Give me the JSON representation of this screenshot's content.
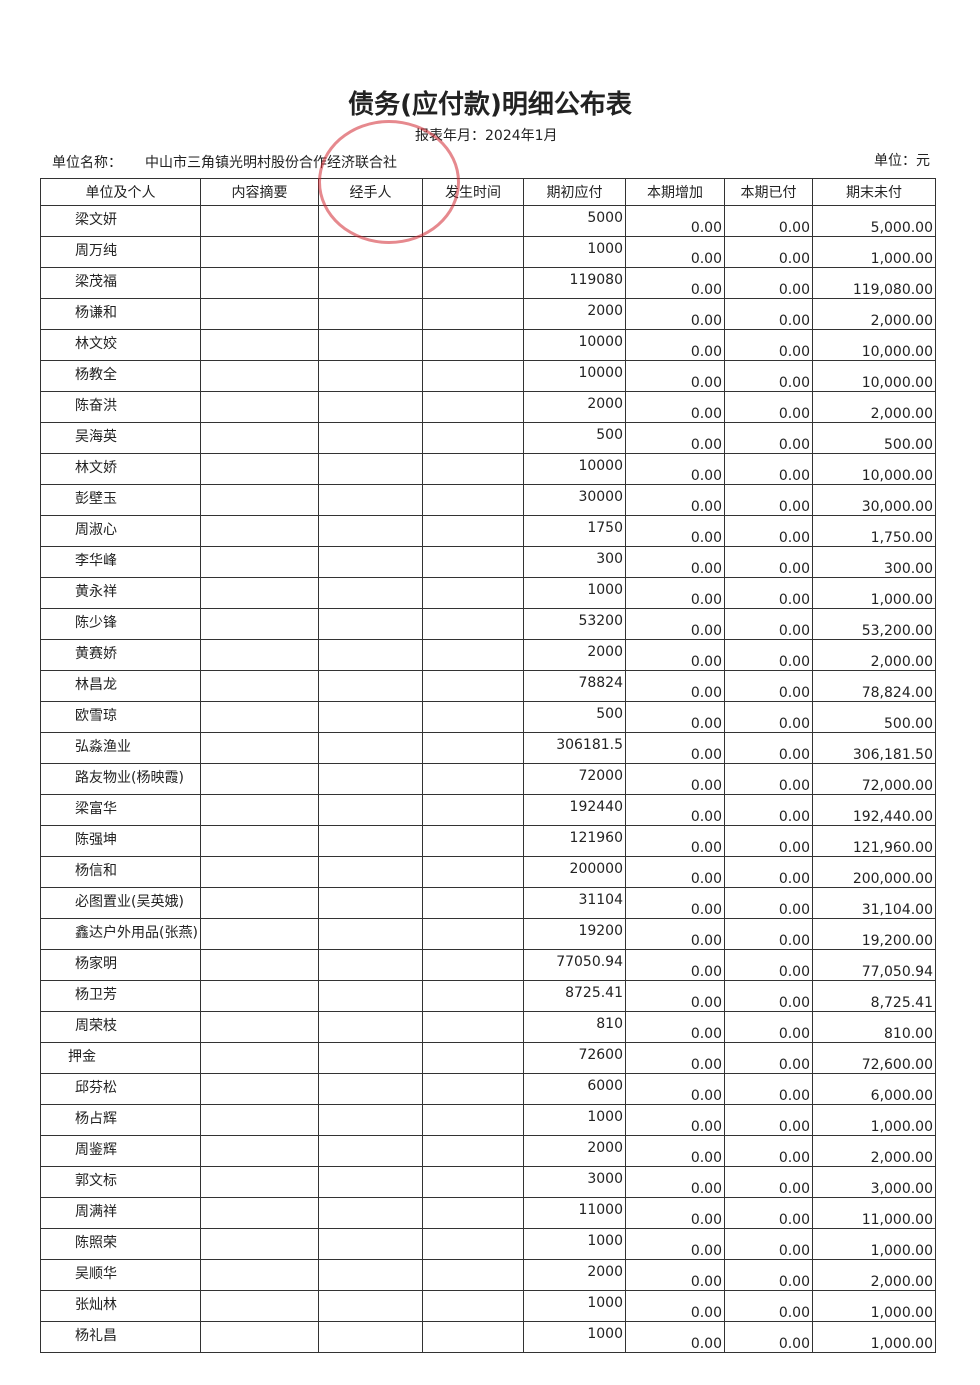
{
  "header": {
    "title": "债务(应付款)明细公布表",
    "report_date": "报表年月：2024年1月",
    "unit_label": "单位名称：",
    "unit_name": "中山市三角镇光明村股份合作经济联合社",
    "currency": "单位：元"
  },
  "table": {
    "columns": [
      "单位及个人",
      "内容摘要",
      "经手人",
      "发生时间",
      "期初应付",
      "本期增加",
      "本期已付",
      "期末未付"
    ],
    "rows": [
      [
        "梁文妍",
        "5000",
        "0.00",
        "0.00",
        "5,000.00"
      ],
      [
        "周万纯",
        "1000",
        "0.00",
        "0.00",
        "1,000.00"
      ],
      [
        "梁茂福",
        "119080",
        "0.00",
        "0.00",
        "119,080.00"
      ],
      [
        "杨谦和",
        "2000",
        "0.00",
        "0.00",
        "2,000.00"
      ],
      [
        "林文姣",
        "10000",
        "0.00",
        "0.00",
        "10,000.00"
      ],
      [
        "杨教全",
        "10000",
        "0.00",
        "0.00",
        "10,000.00"
      ],
      [
        "陈奋洪",
        "2000",
        "0.00",
        "0.00",
        "2,000.00"
      ],
      [
        "吴海英",
        "500",
        "0.00",
        "0.00",
        "500.00"
      ],
      [
        "林文娇",
        "10000",
        "0.00",
        "0.00",
        "10,000.00"
      ],
      [
        "彭壁玉",
        "30000",
        "0.00",
        "0.00",
        "30,000.00"
      ],
      [
        "周淑心",
        "1750",
        "0.00",
        "0.00",
        "1,750.00"
      ],
      [
        "李华峰",
        "300",
        "0.00",
        "0.00",
        "300.00"
      ],
      [
        "黄永祥",
        "1000",
        "0.00",
        "0.00",
        "1,000.00"
      ],
      [
        "陈少锋",
        "53200",
        "0.00",
        "0.00",
        "53,200.00"
      ],
      [
        "黄赛娇",
        "2000",
        "0.00",
        "0.00",
        "2,000.00"
      ],
      [
        "林昌龙",
        "78824",
        "0.00",
        "0.00",
        "78,824.00"
      ],
      [
        "欧雪琼",
        "500",
        "0.00",
        "0.00",
        "500.00"
      ],
      [
        "弘淼渔业",
        "306181.5",
        "0.00",
        "0.00",
        "306,181.50"
      ],
      [
        "路友物业(杨映霞)",
        "72000",
        "0.00",
        "0.00",
        "72,000.00"
      ],
      [
        "梁富华",
        "192440",
        "0.00",
        "0.00",
        "192,440.00"
      ],
      [
        "陈强坤",
        "121960",
        "0.00",
        "0.00",
        "121,960.00"
      ],
      [
        "杨信和",
        "200000",
        "0.00",
        "0.00",
        "200,000.00"
      ],
      [
        "必图置业(吴英娥)",
        "31104",
        "0.00",
        "0.00",
        "31,104.00"
      ],
      [
        "鑫达户外用品(张燕)",
        "19200",
        "0.00",
        "0.00",
        "19,200.00"
      ],
      [
        "杨家明",
        "77050.94",
        "0.00",
        "0.00",
        "77,050.94"
      ],
      [
        "杨卫芳",
        "8725.41",
        "0.00",
        "0.00",
        "8,725.41"
      ],
      [
        "周荣枝",
        "810",
        "0.00",
        "0.00",
        "810.00"
      ],
      [
        "押金",
        "72600",
        "0.00",
        "0.00",
        "72,600.00"
      ],
      [
        "邱芬松",
        "6000",
        "0.00",
        "0.00",
        "6,000.00"
      ],
      [
        "杨占辉",
        "1000",
        "0.00",
        "0.00",
        "1,000.00"
      ],
      [
        "周鉴辉",
        "2000",
        "0.00",
        "0.00",
        "2,000.00"
      ],
      [
        "郭文标",
        "3000",
        "0.00",
        "0.00",
        "3,000.00"
      ],
      [
        "周满祥",
        "11000",
        "0.00",
        "0.00",
        "11,000.00"
      ],
      [
        "陈照荣",
        "1000",
        "0.00",
        "0.00",
        "1,000.00"
      ],
      [
        "吴顺华",
        "2000",
        "0.00",
        "0.00",
        "2,000.00"
      ],
      [
        "张灿林",
        "1000",
        "0.00",
        "0.00",
        "1,000.00"
      ],
      [
        "杨礼昌",
        "1000",
        "0.00",
        "0.00",
        "1,000.00"
      ]
    ]
  }
}
